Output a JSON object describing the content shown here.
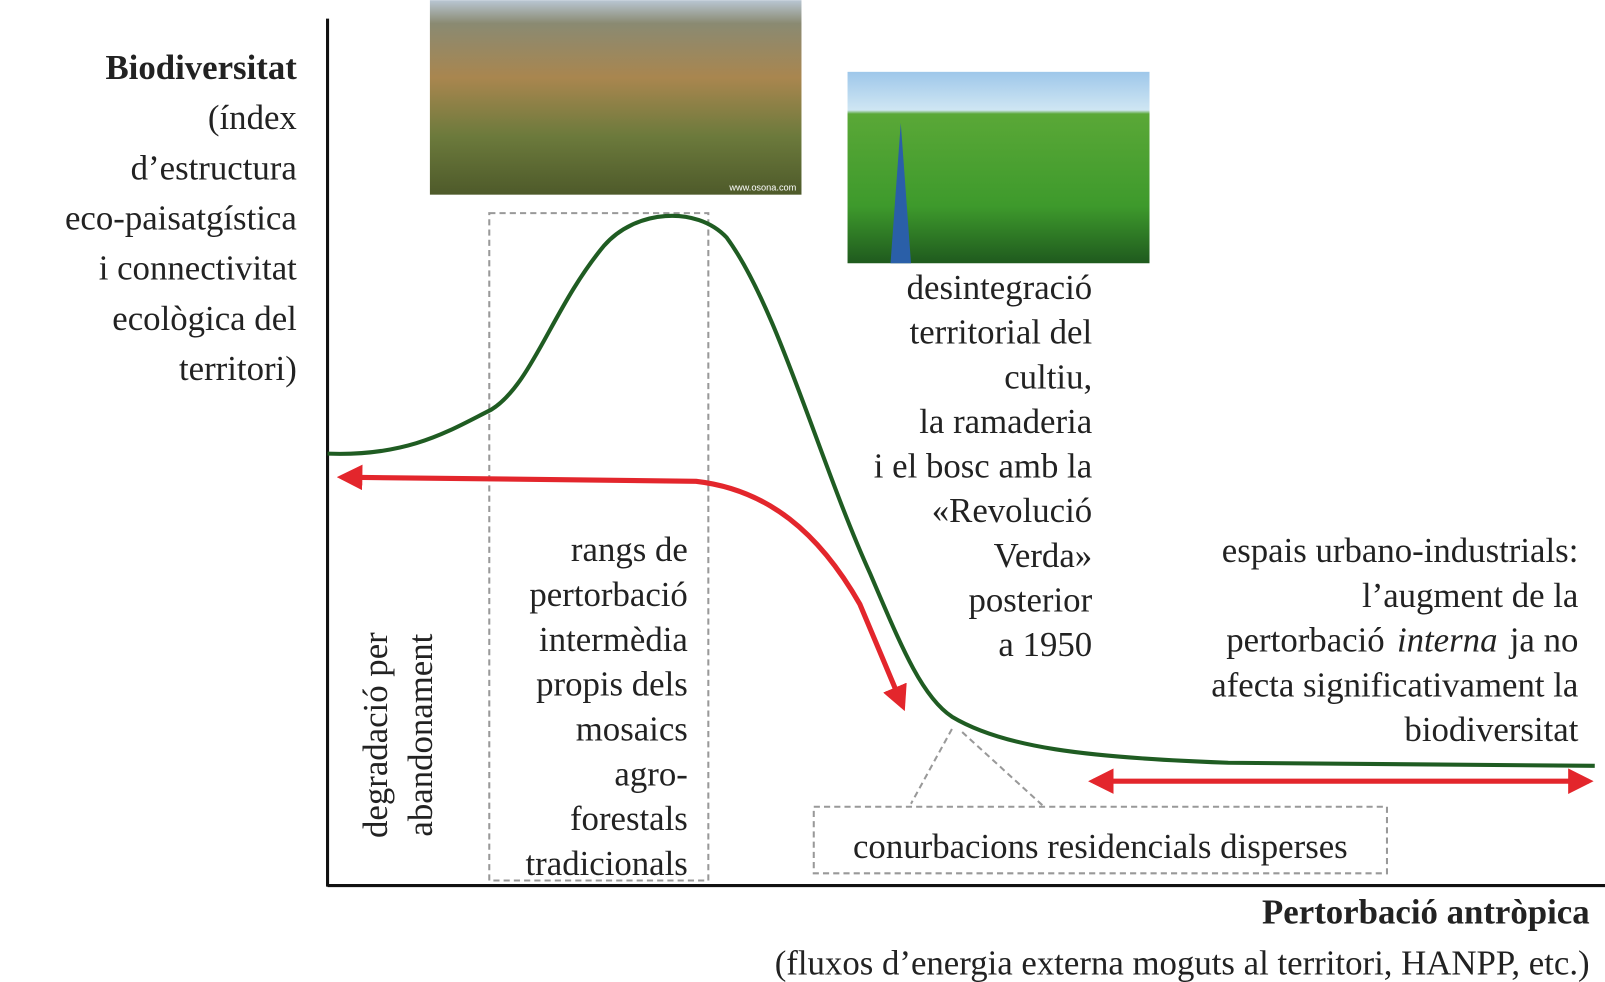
{
  "y_axis": {
    "title": "Biodiversitat",
    "subtitle": [
      "(índex",
      "d’estructura",
      "eco-paisatgística",
      "i connectivitat",
      "ecològica del",
      "territori)"
    ]
  },
  "x_axis": {
    "title": "Pertorbació antròpica",
    "subtitle": "(fluxos d’energia externa moguts al territori, HANPP, etc.)"
  },
  "annotations": {
    "abandonment": [
      "degradació per",
      "abandonament"
    ],
    "intermediate": [
      "rangs de",
      "pertorbació",
      "intermèdia",
      "propis dels",
      "mosaics",
      "agro-",
      "forestals",
      "tradicionals"
    ],
    "green_revolution": [
      "desintegració",
      "territorial del",
      "cultiu,",
      "la ramaderia",
      "i el bosc amb la",
      "«Revolució",
      "Verda»",
      "posterior",
      "a 1950"
    ],
    "urban": [
      [
        "espais urbano-industrials:"
      ],
      [
        "l’augment de la"
      ],
      [
        "pertorbació",
        "interna",
        "ja no"
      ],
      [
        "afecta significativament la"
      ],
      [
        "biodiversitat"
      ]
    ],
    "sprawl": "conurbacions residencials disperses"
  },
  "photo_credit": "www.osona.com"
}
